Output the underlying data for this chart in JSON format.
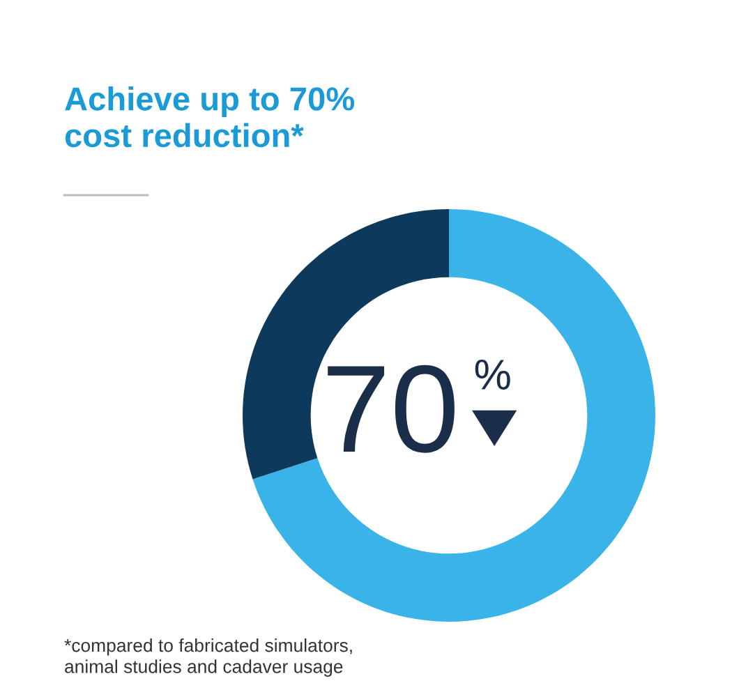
{
  "chart_data": {
    "type": "donut",
    "title": "Achieve up to 70%\ncost reduction*",
    "categories": [
      null,
      null
    ],
    "values": [
      70,
      30
    ],
    "colors": [
      "#3ab4e8",
      "#0d3a5c"
    ],
    "legend": false,
    "annotations": [
      "70%",
      "*compared to fabricated simulators,\nanimal studies and cadaver usage"
    ]
  }
}
